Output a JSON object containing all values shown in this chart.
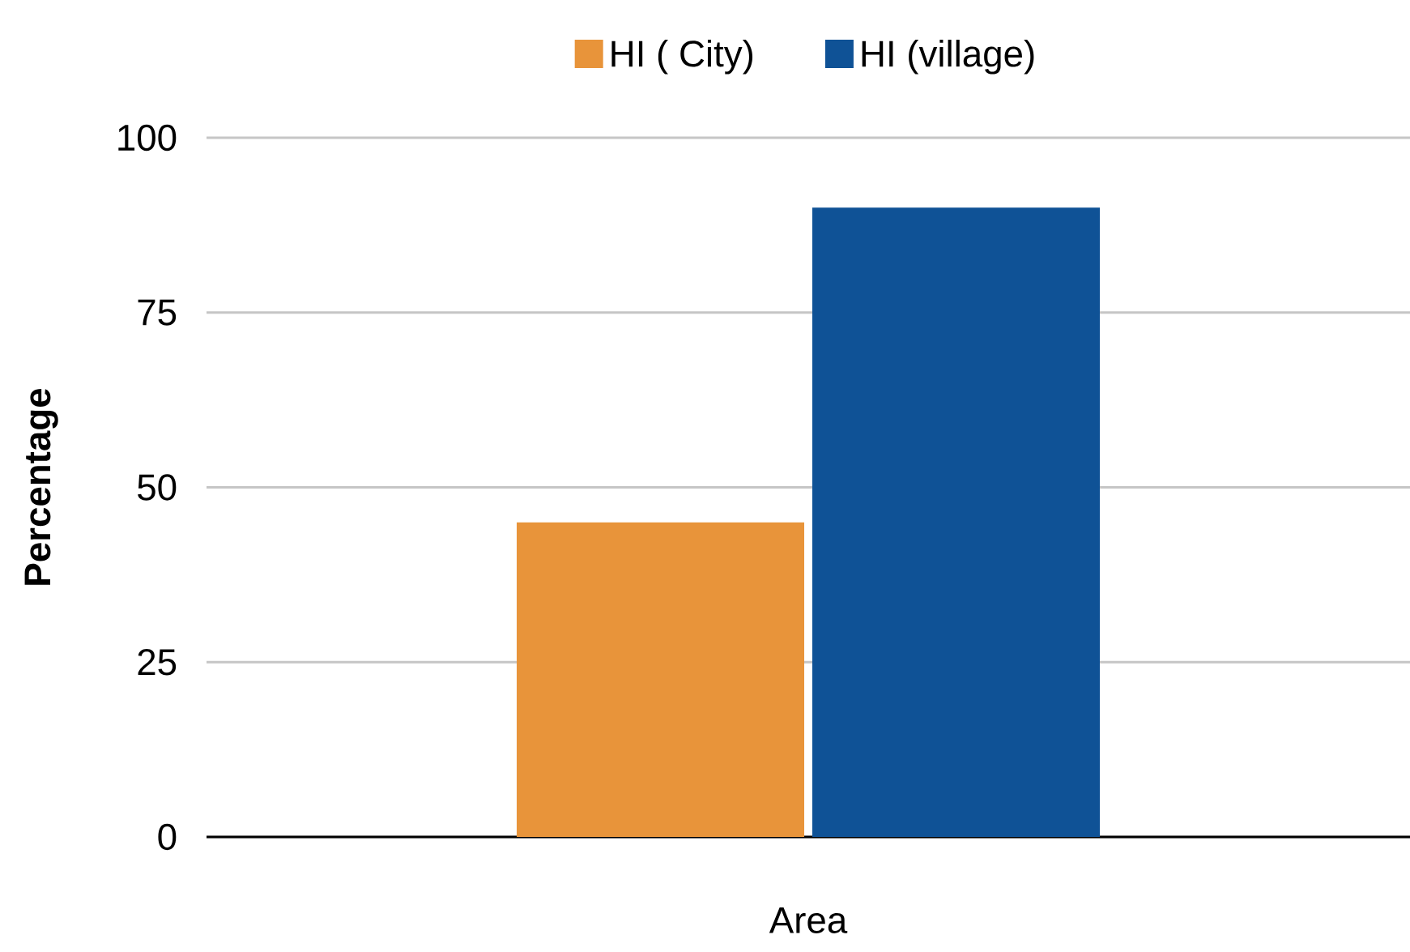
{
  "chart_data": {
    "type": "bar",
    "xlabel": "Area",
    "ylabel": "Percentage",
    "categories": [
      null
    ],
    "series": [
      {
        "name": "HI ( City)",
        "color": "#e8943a",
        "values": [
          45
        ]
      },
      {
        "name": "HI (village)",
        "color": "#0f5296",
        "values": [
          90
        ]
      }
    ],
    "ylim": [
      0,
      100
    ],
    "yticks": [
      0,
      25,
      50,
      75,
      100
    ],
    "grid": "y",
    "legend": "top"
  }
}
